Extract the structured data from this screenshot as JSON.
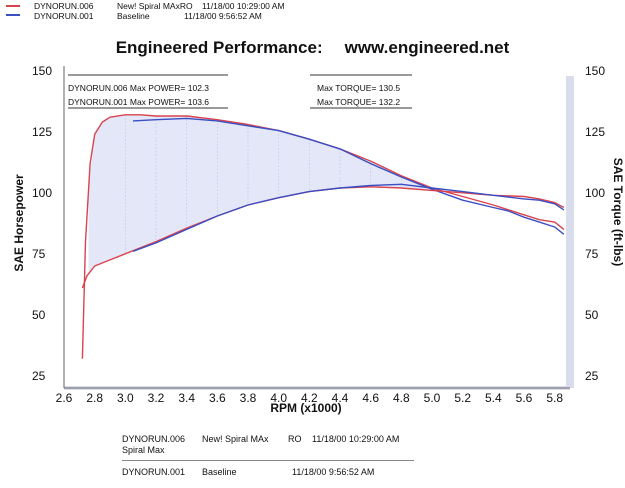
{
  "header": {
    "runs": [
      {
        "file": "DYNORUN.006",
        "desc": "New! Spiral MAxRO",
        "datetime": "11/18/00 10:29:00 AM"
      },
      {
        "file": "DYNORUN.001",
        "desc": "Baseline",
        "datetime": "11/18/00 9:56:52 AM"
      }
    ]
  },
  "colors": {
    "run006": "#d9434e",
    "run001": "#3a4fc4",
    "fill": "#dde1f6",
    "grid": "#b8bde4",
    "band": "#d9dcea"
  },
  "chart_data": {
    "type": "line",
    "title_left": "Engineered Performance:",
    "title_right": "www.engineered.net",
    "xlabel": "RPM (x1000)",
    "ylabel_left": "SAE Horsepower",
    "ylabel_right": "SAE Torque (ft-lbs)",
    "xlim": [
      2.6,
      5.9
    ],
    "ylim": [
      20,
      152
    ],
    "x_ticks": [
      "2.6",
      "2.8",
      "3.0",
      "3.2",
      "3.4",
      "3.6",
      "3.8",
      "4.0",
      "4.2",
      "4.4",
      "4.6",
      "4.8",
      "5.0",
      "5.2",
      "5.4",
      "5.6",
      "5.8"
    ],
    "y_ticks_left": [
      "150",
      "125",
      "100",
      "75",
      "50",
      "25"
    ],
    "y_ticks_right": [
      "150",
      "125",
      "100",
      "75",
      "50",
      "25"
    ],
    "legend_box_left": {
      "lines": [
        "DYNORUN.006  Max POWER= 102.3",
        "DYNORUN.001  Max POWER= 103.6"
      ]
    },
    "legend_box_right": {
      "lines": [
        "Max TORQUE= 130.5",
        "Max TORQUE= 132.2"
      ]
    },
    "series": [
      {
        "name": "DYNORUN.006",
        "measure": "torque",
        "x": [
          2.72,
          2.74,
          2.77,
          2.8,
          2.85,
          2.9,
          3.0,
          3.1,
          3.2,
          3.4,
          3.6,
          3.8,
          4.0,
          4.2,
          4.4,
          4.6,
          4.8,
          5.0,
          5.2,
          5.4,
          5.5,
          5.6,
          5.7,
          5.8,
          5.86
        ],
        "y": [
          32,
          80,
          112,
          124,
          129,
          131,
          132,
          132,
          131.5,
          131.5,
          130,
          128,
          125.5,
          122,
          118,
          113,
          107,
          102,
          98.5,
          95,
          93,
          91,
          89,
          88,
          85
        ]
      },
      {
        "name": "DYNORUN.001",
        "measure": "torque",
        "x": [
          3.05,
          3.2,
          3.4,
          3.6,
          3.8,
          4.0,
          4.2,
          4.4,
          4.6,
          4.8,
          5.0,
          5.2,
          5.4,
          5.5,
          5.6,
          5.7,
          5.8,
          5.86
        ],
        "y": [
          129.5,
          130,
          130.5,
          129.5,
          127.5,
          125.5,
          122,
          118,
          112,
          106.5,
          101.5,
          97,
          94,
          92.5,
          90,
          88,
          86,
          83
        ]
      },
      {
        "name": "DYNORUN.006",
        "measure": "power",
        "x": [
          2.72,
          2.75,
          2.8,
          2.9,
          3.0,
          3.1,
          3.2,
          3.4,
          3.6,
          3.8,
          4.0,
          4.2,
          4.4,
          4.6,
          4.8,
          5.0,
          5.2,
          5.4,
          5.6,
          5.7,
          5.8,
          5.86
        ],
        "y": [
          61,
          66,
          70,
          72.5,
          75,
          77.5,
          80,
          85.5,
          90.5,
          95,
          98,
          100.5,
          102,
          102.5,
          102,
          101,
          100,
          99,
          98.5,
          97.5,
          96,
          94
        ]
      },
      {
        "name": "DYNORUN.001",
        "measure": "power",
        "x": [
          3.05,
          3.2,
          3.4,
          3.6,
          3.8,
          4.0,
          4.2,
          4.4,
          4.6,
          4.8,
          5.0,
          5.2,
          5.4,
          5.6,
          5.7,
          5.8,
          5.86
        ],
        "y": [
          76,
          79.5,
          85,
          90.5,
          95,
          98,
          100.5,
          102,
          103,
          103.5,
          102,
          100.5,
          99,
          97.5,
          97,
          95.5,
          93
        ]
      }
    ]
  },
  "footer": {
    "rows": [
      {
        "file": "DYNORUN.006",
        "desc": "New! Spiral MAx",
        "suffix": "RO",
        "datetime": "11/18/00 10:29:00 AM",
        "desc2": "Spiral Max"
      },
      {
        "file": "DYNORUN.001",
        "desc": "Baseline",
        "datetime": "11/18/00 9:56:52 AM"
      }
    ]
  }
}
